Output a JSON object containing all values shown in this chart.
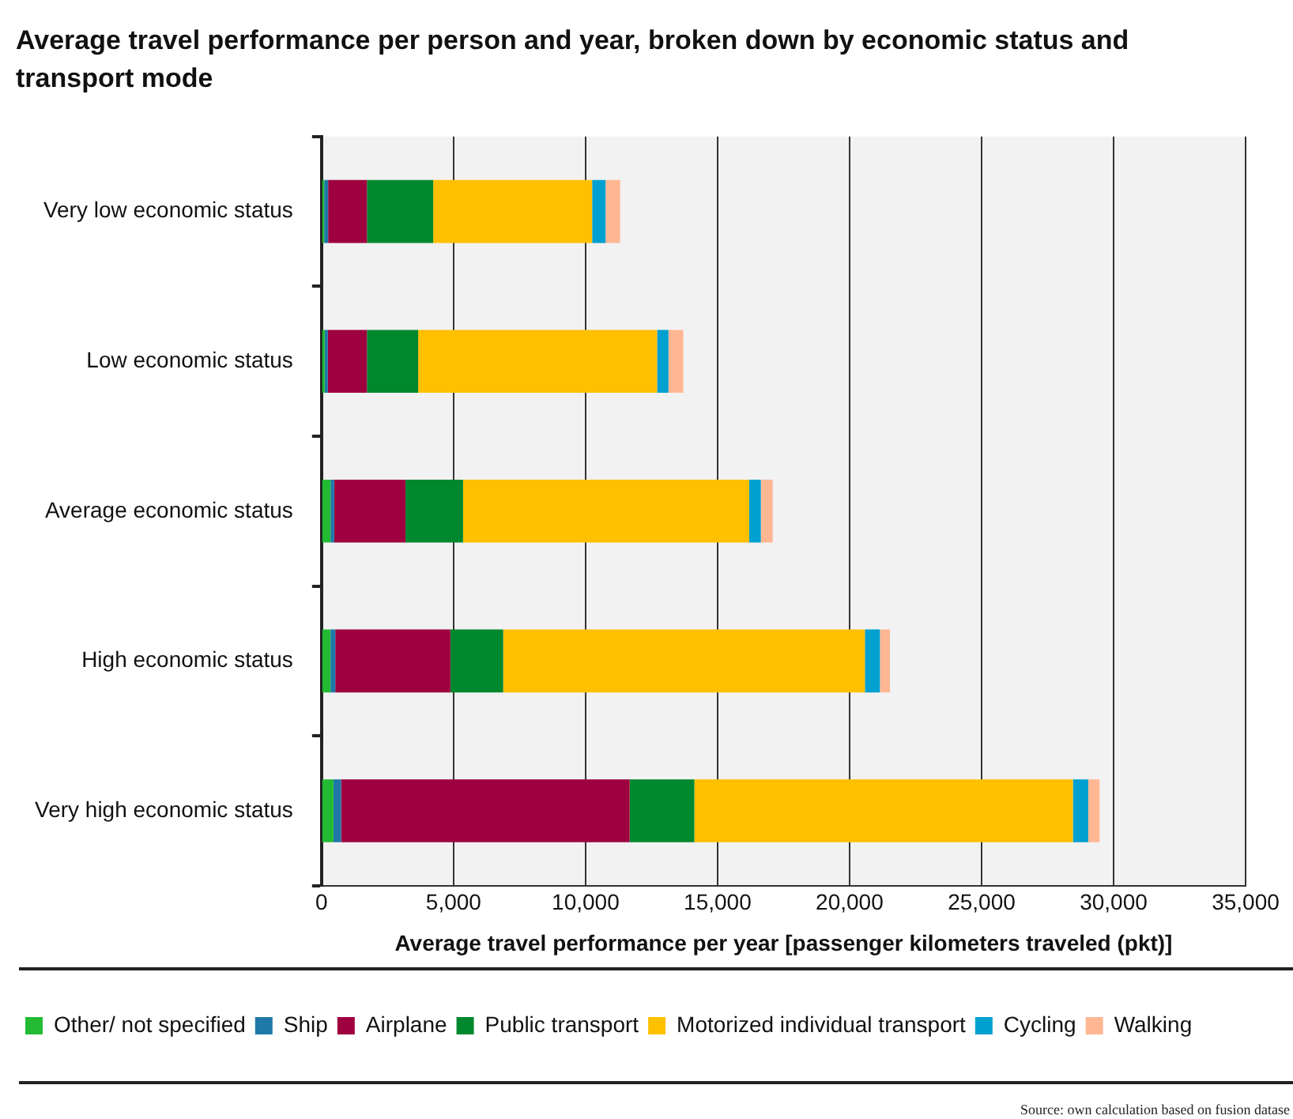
{
  "chart_data": {
    "type": "bar",
    "orientation": "horizontal",
    "stacked": true,
    "title": "Average travel performance per person and year, broken down by economic status and transport mode",
    "xlabel": "Average travel performance per year [passenger kilometers traveled (pkt)]",
    "categories": [
      "Very low economic status",
      "Low economic status",
      "Average economic status",
      "High economic status",
      "Very high economic status"
    ],
    "series": [
      {
        "name": "Other/ not specified",
        "color": "#22bb33",
        "values": [
          100,
          120,
          340,
          340,
          450
        ]
      },
      {
        "name": "Ship",
        "color": "#1f78a8",
        "values": [
          150,
          120,
          140,
          180,
          290
        ]
      },
      {
        "name": "Airplane",
        "color": "#9e0040",
        "values": [
          1470,
          1480,
          2700,
          4360,
          10930
        ]
      },
      {
        "name": "Public transport",
        "color": "#00882e",
        "values": [
          2510,
          1940,
          2180,
          2000,
          2450
        ]
      },
      {
        "name": "Motorized individual transport",
        "color": "#ffc000",
        "values": [
          6020,
          9050,
          10840,
          13700,
          14340
        ]
      },
      {
        "name": "Cycling",
        "color": "#00a0d0",
        "values": [
          510,
          430,
          440,
          570,
          580
        ]
      },
      {
        "name": "Walking",
        "color": "#ffb793",
        "values": [
          550,
          560,
          450,
          380,
          430
        ]
      }
    ],
    "xlim": [
      0,
      35000
    ],
    "xticks": [
      {
        "value": 0,
        "label": "0"
      },
      {
        "value": 5000,
        "label": "5,000"
      },
      {
        "value": 10000,
        "label": "10,000"
      },
      {
        "value": 15000,
        "label": "15,000"
      },
      {
        "value": 20000,
        "label": "20,000"
      },
      {
        "value": 25000,
        "label": "25,000"
      },
      {
        "value": 30000,
        "label": "30,000"
      },
      {
        "value": 35000,
        "label": "35,000"
      }
    ],
    "grid": "x",
    "legend": "bottom",
    "annotations": [
      "Source: own calculation based on fusion datase"
    ]
  }
}
